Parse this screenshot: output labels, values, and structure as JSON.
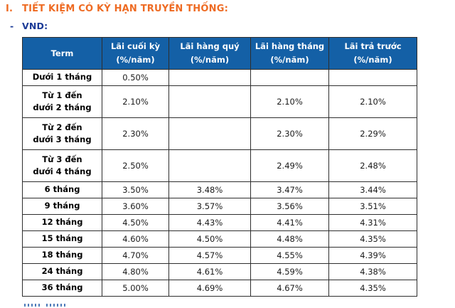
{
  "page": {
    "section_number": "I.",
    "section_title": "TIẾT KIỆM CÓ KỲ HẠN TRUYỀN THỐNG:",
    "currency_dash": "-",
    "currency_label": "VND:"
  },
  "colors": {
    "title_orange": "#ee6b23",
    "currency_navy": "#1c3b97",
    "table_header_bg": "#1460a6",
    "table_header_text": "#ffffff",
    "table_border": "#2e2e2e"
  },
  "table": {
    "columns": [
      {
        "label": "Term",
        "sub": ""
      },
      {
        "label": "Lãi cuối kỳ",
        "sub": "(%/năm)"
      },
      {
        "label": "Lãi hàng quý",
        "sub": "(%/năm)"
      },
      {
        "label": "Lãi hàng tháng",
        "sub": "(%/năm)"
      },
      {
        "label": "Lãi trả trước",
        "sub": "(%/năm)"
      }
    ],
    "rows": [
      {
        "term_lines": [
          "Dưới 1 tháng"
        ],
        "values": [
          "0.50%",
          "",
          "",
          ""
        ]
      },
      {
        "term_lines": [
          "Từ 1 đến",
          "dưới 2 tháng"
        ],
        "values": [
          "2.10%",
          "",
          "2.10%",
          "2.10%"
        ]
      },
      {
        "term_lines": [
          "Từ 2 đến",
          "dưới 3 tháng"
        ],
        "values": [
          "2.30%",
          "",
          "2.30%",
          "2.29%"
        ]
      },
      {
        "term_lines": [
          "Từ 3 đến",
          "dưới 4 tháng"
        ],
        "values": [
          "2.50%",
          "",
          "2.49%",
          "2.48%"
        ]
      },
      {
        "term_lines": [
          "6 tháng"
        ],
        "values": [
          "3.50%",
          "3.48%",
          "3.47%",
          "3.44%"
        ]
      },
      {
        "term_lines": [
          "9 tháng"
        ],
        "values": [
          "3.60%",
          "3.57%",
          "3.56%",
          "3.51%"
        ]
      },
      {
        "term_lines": [
          "12 tháng"
        ],
        "values": [
          "4.50%",
          "4.43%",
          "4.41%",
          "4.31%"
        ]
      },
      {
        "term_lines": [
          "15 tháng"
        ],
        "values": [
          "4.60%",
          "4.50%",
          "4.48%",
          "4.35%"
        ]
      },
      {
        "term_lines": [
          "18 tháng"
        ],
        "values": [
          "4.70%",
          "4.57%",
          "4.55%",
          "4.39%"
        ]
      },
      {
        "term_lines": [
          "24 tháng"
        ],
        "values": [
          "4.80%",
          "4.61%",
          "4.59%",
          "4.38%"
        ]
      },
      {
        "term_lines": [
          "36 tháng"
        ],
        "values": [
          "5.00%",
          "4.69%",
          "4.67%",
          "4.35%"
        ]
      }
    ]
  }
}
